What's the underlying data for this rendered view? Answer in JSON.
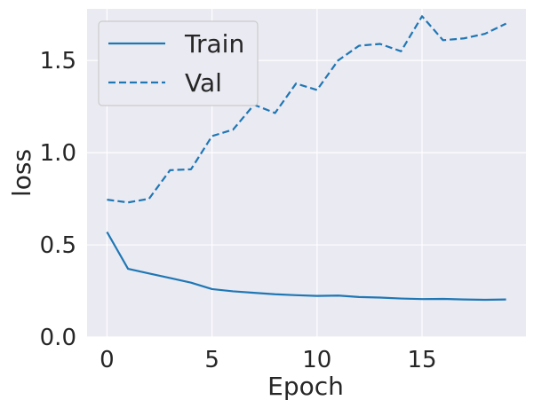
{
  "chart_data": {
    "type": "line",
    "title": "",
    "xlabel": "Epoch",
    "ylabel": "loss",
    "x": [
      0,
      1,
      2,
      3,
      4,
      5,
      6,
      7,
      8,
      9,
      10,
      11,
      12,
      13,
      14,
      15,
      16,
      17,
      18,
      19
    ],
    "series": [
      {
        "name": "Train",
        "line_style": "solid",
        "color": "#1f77b4",
        "values": [
          0.57,
          0.37,
          0.345,
          0.32,
          0.295,
          0.26,
          0.248,
          0.24,
          0.232,
          0.227,
          0.223,
          0.225,
          0.217,
          0.214,
          0.209,
          0.206,
          0.207,
          0.204,
          0.202,
          0.204
        ]
      },
      {
        "name": "Val",
        "line_style": "dashed",
        "color": "#1f77b4",
        "values": [
          0.745,
          0.73,
          0.75,
          0.905,
          0.91,
          1.09,
          1.125,
          1.26,
          1.215,
          1.375,
          1.34,
          1.5,
          1.58,
          1.59,
          1.55,
          1.74,
          1.61,
          1.62,
          1.645,
          1.7
        ]
      }
    ],
    "xlim": [
      -0.95,
      19.95
    ],
    "ylim": [
      0,
      1.78
    ],
    "xticks": [
      0,
      5,
      10,
      15
    ],
    "yticks": [
      0.0,
      0.5,
      1.0,
      1.5
    ],
    "xtick_labels": [
      "0",
      "5",
      "10",
      "15"
    ],
    "ytick_labels": [
      "0.0",
      "0.5",
      "1.0",
      "1.5"
    ],
    "grid": true,
    "legend": {
      "placement": "top-left",
      "entries": [
        "Train",
        "Val"
      ]
    },
    "colors": {
      "plot_background": "#eaeaf2",
      "grid": "#ffffff",
      "text": "#262626",
      "legend_border": "#cccccc"
    }
  }
}
